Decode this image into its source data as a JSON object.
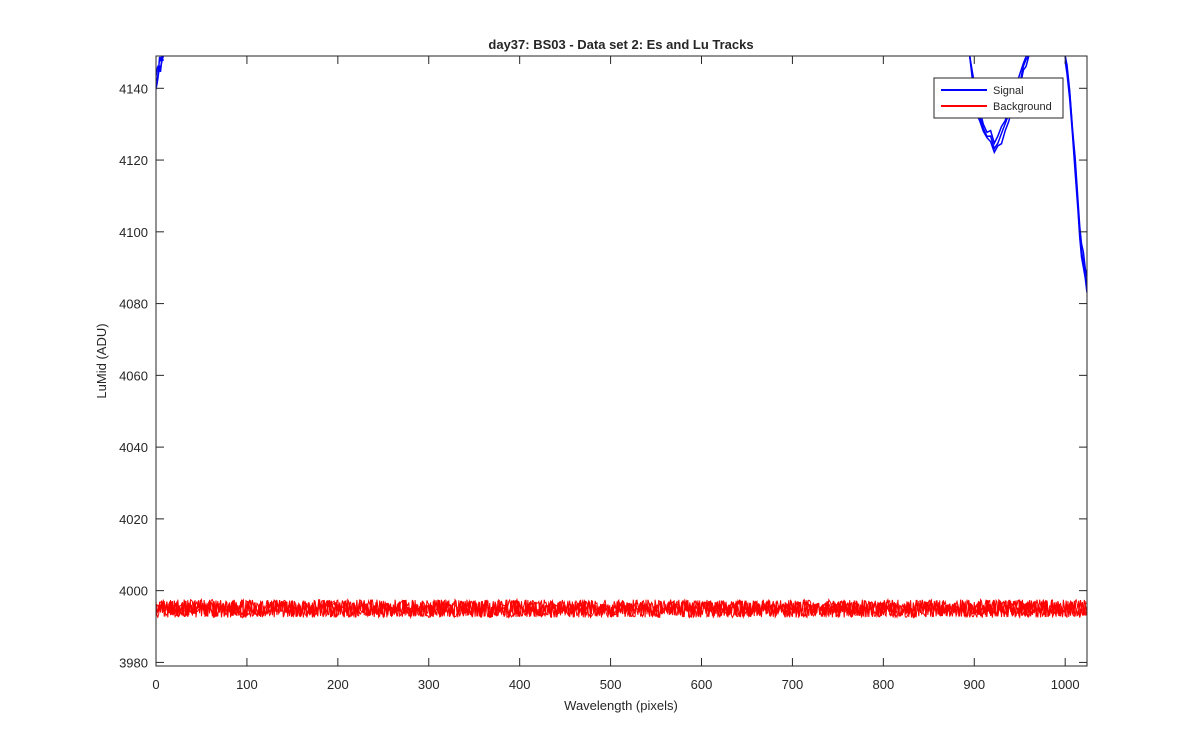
{
  "chart_data": {
    "type": "line",
    "title": "day37: BS03 - Data set 2: Es and Lu Tracks",
    "xlabel": "Wavelength (pixels)",
    "ylabel": "LuMid (ADU)",
    "xlim": [
      0,
      1024
    ],
    "ylim": [
      3979,
      4149
    ],
    "x_ticks": [
      0,
      100,
      200,
      300,
      400,
      500,
      600,
      700,
      800,
      900,
      1000
    ],
    "y_ticks": [
      3980,
      4000,
      4020,
      4040,
      4060,
      4080,
      4100,
      4120,
      4140
    ],
    "grid": false,
    "legend_position": "top-right",
    "series": [
      {
        "name": "Signal",
        "color": "#0000ff",
        "segments": [
          {
            "x": [
              0,
              1,
              2,
              3,
              4,
              5,
              6,
              7,
              8
            ],
            "y": [
              4141,
              4143,
              4144,
              4145,
              4147,
              4146,
              4148,
              4149,
              4150
            ]
          },
          {
            "x": [
              895,
              900,
              903,
              906,
              910,
              914,
              918,
              922,
              926,
              930,
              934,
              938,
              942,
              946,
              950,
              954,
              957,
              960
            ],
            "y": [
              4150,
              4140,
              4135,
              4132,
              4129,
              4127,
              4126,
              4123,
              4125,
              4127,
              4130,
              4133,
              4136,
              4139,
              4142,
              4146,
              4148,
              4150
            ]
          },
          {
            "x": [
              1000,
              1002,
              1005,
              1008,
              1011,
              1014,
              1016,
              1018,
              1020,
              1022,
              1024
            ],
            "y": [
              4150,
              4146,
              4138,
              4128,
              4118,
              4108,
              4100,
              4095,
              4092,
              4088,
              4085
            ]
          }
        ]
      },
      {
        "name": "Background",
        "color": "#ff0000",
        "mean": 3995,
        "noise_amplitude": 2.5,
        "x_range": [
          0,
          1024
        ]
      }
    ]
  }
}
